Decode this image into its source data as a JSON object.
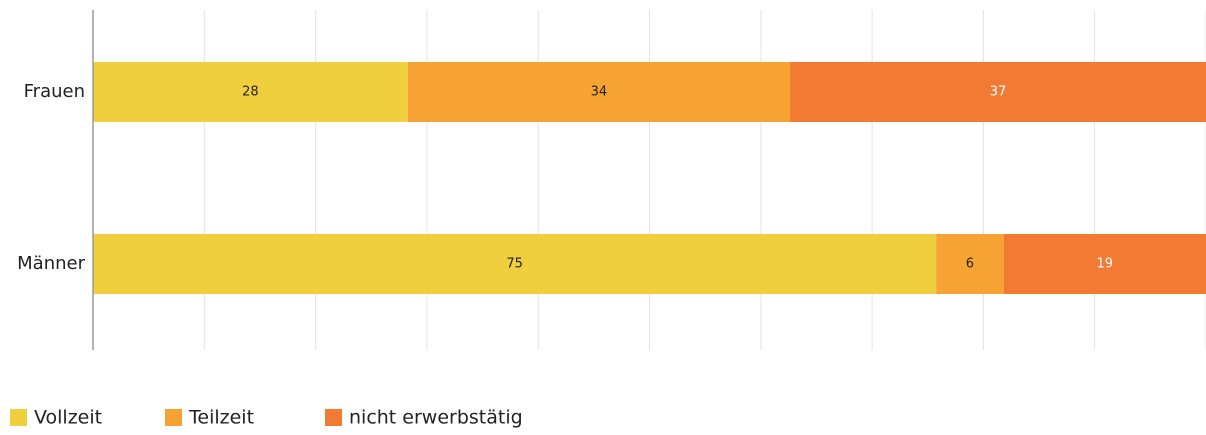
{
  "chart_data": {
    "type": "stacked_barh",
    "categories": [
      "Frauen",
      "Männer"
    ],
    "series": [
      {
        "name": "Vollzeit",
        "color": "#f0cf3e",
        "values": [
          28,
          75
        ]
      },
      {
        "name": "Teilzeit",
        "color": "#f6a333",
        "values": [
          34,
          6
        ]
      },
      {
        "name": "nicht erwerbstätig",
        "color": "#f37a33",
        "values": [
          37,
          19
        ]
      }
    ],
    "xlim": [
      0,
      99
    ],
    "xticks": [
      0,
      9.9,
      19.8,
      29.7,
      39.6,
      49.5,
      59.4,
      69.3,
      79.2,
      89.1,
      99
    ],
    "grid": true,
    "legend": "bottom-left"
  }
}
